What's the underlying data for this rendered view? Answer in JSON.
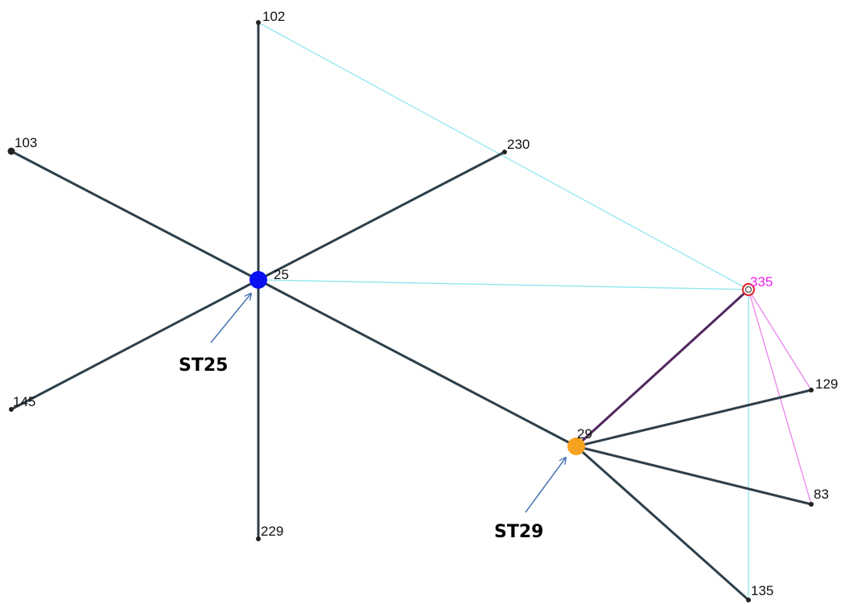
{
  "nodes": [
    {
      "id": "102",
      "label": "102",
      "type": "minor"
    },
    {
      "id": "103",
      "label": "103",
      "type": "minor"
    },
    {
      "id": "230",
      "label": "230",
      "type": "minor"
    },
    {
      "id": "25",
      "label": "25",
      "type": "hub-blue"
    },
    {
      "id": "335",
      "label": "335",
      "type": "highlighted"
    },
    {
      "id": "145",
      "label": "145",
      "type": "minor"
    },
    {
      "id": "129",
      "label": "129",
      "type": "minor"
    },
    {
      "id": "29",
      "label": "29",
      "type": "hub-orange"
    },
    {
      "id": "83",
      "label": "83",
      "type": "minor"
    },
    {
      "id": "229",
      "label": "229",
      "type": "minor"
    },
    {
      "id": "135",
      "label": "135",
      "type": "minor"
    }
  ],
  "edges": [
    {
      "from": "25",
      "to": "102",
      "style": "dark"
    },
    {
      "from": "25",
      "to": "103",
      "style": "dark"
    },
    {
      "from": "25",
      "to": "230",
      "style": "dark"
    },
    {
      "from": "25",
      "to": "145",
      "style": "dark"
    },
    {
      "from": "25",
      "to": "229",
      "style": "dark"
    },
    {
      "from": "25",
      "to": "29",
      "style": "dark"
    },
    {
      "from": "29",
      "to": "129",
      "style": "dark"
    },
    {
      "from": "29",
      "to": "83",
      "style": "dark"
    },
    {
      "from": "29",
      "to": "135",
      "style": "dark"
    },
    {
      "from": "29",
      "to": "335",
      "style": "purple"
    },
    {
      "from": "102",
      "to": "335",
      "style": "cyan"
    },
    {
      "from": "25",
      "to": "335",
      "style": "cyan"
    },
    {
      "from": "335",
      "to": "135",
      "style": "cyan"
    },
    {
      "from": "335",
      "to": "129",
      "style": "magenta"
    },
    {
      "from": "335",
      "to": "83",
      "style": "magenta"
    }
  ],
  "callouts": [
    {
      "label": "ST25",
      "target": "25"
    },
    {
      "label": "ST29",
      "target": "29"
    }
  ],
  "colors": {
    "dark_edge": "#2e3f4b",
    "cyan_edge": "#8fe6ee",
    "magenta_edge": "#ee82ee",
    "purple_edge": "#52275f",
    "hub_blue": "#0a10f0",
    "hub_orange": "#f7a21f",
    "highlight_label": "#ee22ee",
    "highlight_ring": "#e03030",
    "minor_node": "#222222",
    "label_text": "#111111",
    "arrow": "#4f7bb5"
  }
}
